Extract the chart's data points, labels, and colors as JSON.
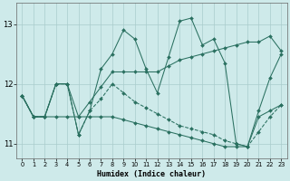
{
  "xlabel": "Humidex (Indice chaleur)",
  "background_color": "#ceeaea",
  "grid_color": "#aacccc",
  "line_color": "#2a7060",
  "xlim": [
    -0.5,
    23.5
  ],
  "ylim": [
    10.75,
    13.35
  ],
  "x_ticks": [
    0,
    1,
    2,
    3,
    4,
    5,
    6,
    7,
    8,
    9,
    10,
    11,
    12,
    13,
    14,
    15,
    16,
    17,
    18,
    19,
    20,
    21,
    22,
    23
  ],
  "y_ticks": [
    11,
    12,
    13
  ],
  "series": [
    {
      "x": [
        0,
        1,
        2,
        3,
        4,
        5,
        6,
        7,
        8,
        9,
        10,
        11,
        12,
        13,
        14,
        15,
        16,
        17,
        18,
        19,
        20,
        21,
        22,
        23
      ],
      "y": [
        11.8,
        11.45,
        11.45,
        12.0,
        12.0,
        11.15,
        11.55,
        12.25,
        12.5,
        12.9,
        12.75,
        12.25,
        11.85,
        12.45,
        13.05,
        13.1,
        12.65,
        12.75,
        12.35,
        11.0,
        10.95,
        11.55,
        12.1,
        12.5
      ],
      "style": "-",
      "marker": "D",
      "markersize": 2.0
    },
    {
      "x": [
        0,
        1,
        2,
        3,
        4,
        5,
        6,
        7,
        8,
        9,
        10,
        11,
        12,
        13,
        14,
        15,
        16,
        17,
        18,
        19,
        20,
        21,
        22,
        23
      ],
      "y": [
        11.8,
        11.45,
        11.45,
        11.45,
        11.45,
        11.45,
        11.45,
        11.45,
        11.45,
        11.4,
        11.35,
        11.3,
        11.25,
        11.2,
        11.15,
        11.1,
        11.05,
        11.0,
        10.95,
        10.95,
        10.95,
        11.45,
        11.55,
        11.65
      ],
      "style": "-",
      "marker": "D",
      "markersize": 2.0
    },
    {
      "x": [
        0,
        1,
        2,
        3,
        4,
        5,
        6,
        7,
        8,
        9,
        10,
        11,
        12,
        13,
        14,
        15,
        16,
        17,
        18,
        19,
        20,
        21,
        22,
        23
      ],
      "y": [
        11.8,
        11.45,
        11.45,
        12.0,
        12.0,
        11.45,
        11.7,
        11.95,
        12.2,
        12.2,
        12.2,
        12.2,
        12.2,
        12.3,
        12.4,
        12.45,
        12.5,
        12.55,
        12.6,
        12.65,
        12.7,
        12.7,
        12.8,
        12.55
      ],
      "style": "-",
      "marker": "D",
      "markersize": 2.0
    },
    {
      "x": [
        0,
        1,
        2,
        3,
        4,
        5,
        6,
        7,
        8,
        9,
        10,
        11,
        12,
        13,
        14,
        15,
        16,
        17,
        18,
        19,
        20,
        21,
        22,
        23
      ],
      "y": [
        11.8,
        11.45,
        11.45,
        12.0,
        12.0,
        11.15,
        11.55,
        11.75,
        12.0,
        11.85,
        11.7,
        11.6,
        11.5,
        11.4,
        11.3,
        11.25,
        11.2,
        11.15,
        11.05,
        11.0,
        10.95,
        11.2,
        11.45,
        11.65
      ],
      "style": "--",
      "marker": "D",
      "markersize": 2.0
    }
  ]
}
